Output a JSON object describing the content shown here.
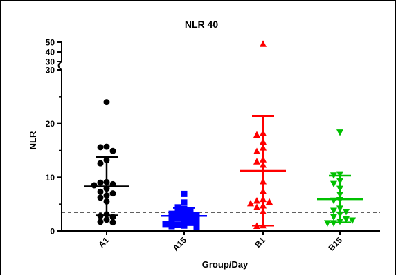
{
  "chart_data": {
    "type": "scatter",
    "subtype": "dot-plot-with-mean-and-sd",
    "title": "NLR 40",
    "xlabel": "Group/Day",
    "ylabel": "NLR",
    "y_axis": "broken",
    "y_segments": [
      {
        "range": [
          0,
          30
        ],
        "ticks": [
          0,
          10,
          20,
          30
        ]
      },
      {
        "range": [
          30,
          50
        ],
        "ticks": [
          30,
          40,
          50
        ]
      }
    ],
    "reference_line": {
      "y": 3.5,
      "style": "dashed"
    },
    "categories": [
      "A1",
      "A15",
      "B1",
      "B15"
    ],
    "series": [
      {
        "category": "A1",
        "marker": "circle",
        "color": "#000000",
        "mean": 8.3,
        "sd_low": 2.9,
        "sd_high": 13.8,
        "values": [
          24,
          15.7,
          15.6,
          14.9,
          13.2,
          12.6,
          9.1,
          9.0,
          8.7,
          8.5,
          7.9,
          7.3,
          7.0,
          6.6,
          6.2,
          5.5,
          3.1,
          2.8,
          2.6,
          2.1,
          1.7,
          1.6
        ]
      },
      {
        "category": "A15",
        "marker": "square",
        "color": "#0000ff",
        "mean": 2.8,
        "sd_low": 1.4,
        "sd_high": 4.3,
        "values": [
          6.9,
          5.3,
          4.4,
          4.1,
          3.6,
          3.4,
          3.2,
          3.0,
          2.9,
          2.6,
          2.4,
          2.1,
          2.0,
          1.8,
          1.5,
          1.2,
          1.0,
          0.9,
          0.8,
          1.3
        ]
      },
      {
        "category": "B1",
        "marker": "triangle-up",
        "color": "#ff0000",
        "mean": 11.2,
        "sd_low": 1.0,
        "sd_high": 21.4,
        "values": [
          48,
          18.2,
          17.9,
          16.6,
          15.5,
          14.8,
          13.3,
          12.3,
          12.9,
          9.2,
          7.4,
          5.9,
          5.6,
          5.4,
          5.1,
          4.7,
          4.4,
          3.6,
          1.0,
          0.9
        ]
      },
      {
        "category": "B15",
        "marker": "triangle-down",
        "color": "#00c000",
        "mean": 5.9,
        "sd_low": 1.6,
        "sd_high": 10.3,
        "values": [
          18.4,
          10.6,
          10.4,
          9.3,
          8.8,
          7.9,
          6.8,
          5.8,
          5.7,
          4.2,
          3.8,
          3.6,
          3.1,
          2.6,
          2.2,
          1.8,
          1.5,
          1.5,
          2.0
        ]
      }
    ]
  }
}
